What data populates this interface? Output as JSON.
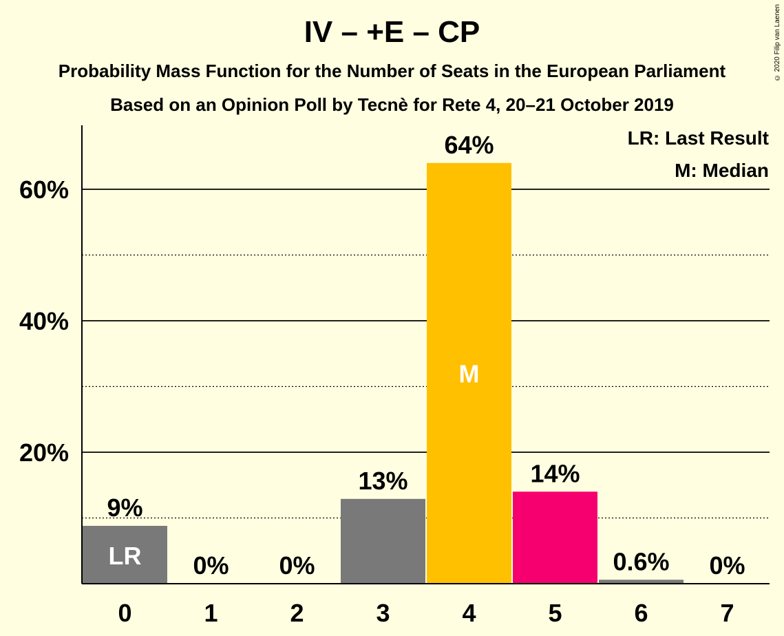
{
  "title": "IV – +E – CP",
  "subtitle1": "Probability Mass Function for the Number of Seats in the European Parliament",
  "subtitle2": "Based on an Opinion Poll by Tecnè for Rete 4, 20–21 October 2019",
  "copyright": "© 2020 Filip van Laenen",
  "legend": {
    "lr": "LR: Last Result",
    "m": "M: Median"
  },
  "chart_data": {
    "type": "bar",
    "categories": [
      "0",
      "1",
      "2",
      "3",
      "4",
      "5",
      "6",
      "7"
    ],
    "values": [
      8.8,
      0,
      0,
      12.9,
      64.0,
      14.0,
      0.6,
      0
    ],
    "data_labels": [
      "9%",
      "0%",
      "0%",
      "13%",
      "64%",
      "14%",
      "0.6%",
      "0%"
    ],
    "bar_colors": [
      "#797979",
      "#797979",
      "#797979",
      "#797979",
      "#FFC000",
      "#F5006E",
      "#797979",
      "#797979"
    ],
    "inner_labels": {
      "0": "LR",
      "4": "M"
    },
    "ylim": [
      0,
      70
    ],
    "yticks": [
      20,
      40,
      60
    ],
    "ytick_labels": [
      "20%",
      "40%",
      "60%"
    ],
    "minor_gridlines": [
      10,
      30,
      50
    ],
    "grid": true,
    "legend_position": "top-right"
  }
}
